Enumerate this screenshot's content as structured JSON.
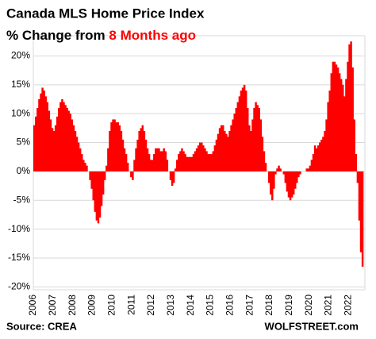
{
  "chart_data": {
    "type": "bar",
    "title": "Canada MLS Home Price Index",
    "subtitle": "% Change from",
    "subtitle_highlight": "8 Months ago",
    "source": "Source: CREA",
    "brand": "WOLFSTREET.com",
    "color": "#ff0000",
    "grid": true,
    "ylim": [
      -20.5,
      23.5
    ],
    "yticks": [
      {
        "value": -20,
        "label": "-20%"
      },
      {
        "value": -15,
        "label": "-15%"
      },
      {
        "value": -10,
        "label": "-10%"
      },
      {
        "value": -5,
        "label": "-5%"
      },
      {
        "value": 0,
        "label": "0%"
      },
      {
        "value": 5,
        "label": "5%"
      },
      {
        "value": 10,
        "label": "10%"
      },
      {
        "value": 15,
        "label": "15%"
      },
      {
        "value": 20,
        "label": "20%"
      }
    ],
    "categories": [
      "2006",
      null,
      null,
      null,
      null,
      null,
      null,
      null,
      null,
      null,
      null,
      null,
      "2007",
      null,
      null,
      null,
      null,
      null,
      null,
      null,
      null,
      null,
      null,
      null,
      "2008",
      null,
      null,
      null,
      null,
      null,
      null,
      null,
      null,
      null,
      null,
      null,
      "2009",
      null,
      null,
      null,
      null,
      null,
      null,
      null,
      null,
      null,
      null,
      null,
      "2010",
      null,
      null,
      null,
      null,
      null,
      null,
      null,
      null,
      null,
      null,
      null,
      "2011",
      null,
      null,
      null,
      null,
      null,
      null,
      null,
      null,
      null,
      null,
      null,
      "2012",
      null,
      null,
      null,
      null,
      null,
      null,
      null,
      null,
      null,
      null,
      null,
      "2013",
      null,
      null,
      null,
      null,
      null,
      null,
      null,
      null,
      null,
      null,
      null,
      "2014",
      null,
      null,
      null,
      null,
      null,
      null,
      null,
      null,
      null,
      null,
      null,
      "2015",
      null,
      null,
      null,
      null,
      null,
      null,
      null,
      null,
      null,
      null,
      null,
      "2016",
      null,
      null,
      null,
      null,
      null,
      null,
      null,
      null,
      null,
      null,
      null,
      "2017",
      null,
      null,
      null,
      null,
      null,
      null,
      null,
      null,
      null,
      null,
      null,
      "2018",
      null,
      null,
      null,
      null,
      null,
      null,
      null,
      null,
      null,
      null,
      null,
      "2019",
      null,
      null,
      null,
      null,
      null,
      null,
      null,
      null,
      null,
      null,
      null,
      "2020",
      null,
      null,
      null,
      null,
      null,
      null,
      null,
      null,
      null,
      null,
      null,
      "2021",
      null,
      null,
      null,
      null,
      null,
      null,
      null,
      null,
      null,
      null,
      null,
      "2022",
      null,
      null,
      null,
      null,
      null,
      null,
      null,
      null
    ],
    "values": [
      8,
      9.5,
      11,
      12.5,
      13.5,
      14.5,
      14,
      13,
      12,
      10.5,
      9,
      7.5,
      7,
      8,
      9.5,
      11,
      12,
      12.5,
      12,
      11.5,
      11,
      10.5,
      10,
      9,
      8,
      7,
      6,
      5,
      4,
      3,
      2,
      1.5,
      1,
      0,
      -1.5,
      -3,
      -5,
      -7,
      -8.5,
      -9,
      -8,
      -6,
      -4,
      -1.5,
      1,
      4,
      7,
      8.5,
      9,
      9,
      8.5,
      8.5,
      8,
      7,
      5.5,
      4,
      3,
      1.5,
      0,
      -1,
      -1.5,
      2,
      4,
      5.5,
      7,
      7.5,
      8,
      7,
      5.5,
      4,
      3,
      2,
      2,
      3,
      4,
      4,
      4,
      3.5,
      3.5,
      4,
      3.5,
      2,
      0,
      -1.5,
      -2.5,
      -2,
      0.5,
      2,
      3,
      3.5,
      4,
      3.5,
      3,
      2.5,
      2.5,
      2.5,
      2.5,
      3,
      3.5,
      4,
      4.5,
      5,
      5,
      4.5,
      4,
      3.5,
      3,
      3,
      3,
      3.5,
      4.5,
      5.5,
      6.5,
      7.5,
      8,
      8,
      7,
      6.5,
      6,
      7,
      8,
      9,
      10,
      11,
      12,
      13,
      14,
      14.5,
      15,
      14,
      11,
      8,
      7,
      9,
      11,
      12,
      11.5,
      11,
      9,
      6,
      3.5,
      1.5,
      0,
      -2,
      -4,
      -5,
      -3,
      -0.5,
      0.5,
      1,
      0.5,
      0,
      -0.5,
      -2,
      -3.5,
      -4.5,
      -5,
      -4.5,
      -4,
      -3,
      -2,
      -1,
      -0.5,
      0,
      0,
      0,
      0.5,
      0.5,
      1,
      2,
      3,
      4.5,
      4,
      4.5,
      5,
      5.5,
      6,
      7,
      9,
      12,
      14,
      17,
      19,
      19,
      18.5,
      18,
      17,
      16,
      15,
      13,
      16,
      19,
      22,
      22.5,
      18,
      9,
      3,
      -2,
      -8.5,
      -14,
      -16.5
    ]
  }
}
